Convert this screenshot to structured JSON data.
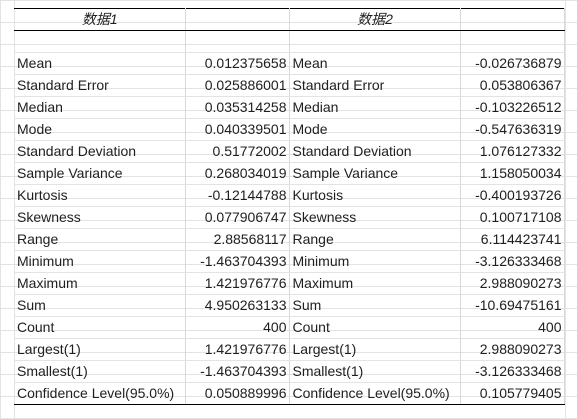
{
  "headers": [
    "数据1",
    "数据2"
  ],
  "rows": [
    {
      "label1": "Mean",
      "value1": "0.012375658",
      "label2": "Mean",
      "value2": "-0.026736879"
    },
    {
      "label1": "Standard Error",
      "value1": "0.025886001",
      "label2": "Standard Error",
      "value2": "0.053806367"
    },
    {
      "label1": "Median",
      "value1": "0.035314258",
      "label2": "Median",
      "value2": "-0.103226512"
    },
    {
      "label1": "Mode",
      "value1": "0.040339501",
      "label2": "Mode",
      "value2": "-0.547636319"
    },
    {
      "label1": "Standard Deviation",
      "value1": "0.51772002",
      "label2": "Standard Deviation",
      "value2": "1.076127332"
    },
    {
      "label1": "Sample Variance",
      "value1": "0.268034019",
      "label2": "Sample Variance",
      "value2": "1.158050034"
    },
    {
      "label1": "Kurtosis",
      "value1": "-0.12144788",
      "label2": "Kurtosis",
      "value2": "-0.400193726"
    },
    {
      "label1": "Skewness",
      "value1": "0.077906747",
      "label2": "Skewness",
      "value2": "0.100717108"
    },
    {
      "label1": "Range",
      "value1": "2.88568117",
      "label2": "Range",
      "value2": "6.114423741"
    },
    {
      "label1": "Minimum",
      "value1": "-1.463704393",
      "label2": "Minimum",
      "value2": "-3.126333468"
    },
    {
      "label1": "Maximum",
      "value1": "1.421976776",
      "label2": "Maximum",
      "value2": "2.988090273"
    },
    {
      "label1": "Sum",
      "value1": "4.950263133",
      "label2": "Sum",
      "value2": "-10.69475161"
    },
    {
      "label1": "Count",
      "value1": "400",
      "label2": "Count",
      "value2": "400"
    },
    {
      "label1": "Largest(1)",
      "value1": "1.421976776",
      "label2": "Largest(1)",
      "value2": "2.988090273"
    },
    {
      "label1": "Smallest(1)",
      "value1": "-1.463704393",
      "label2": "Smallest(1)",
      "value2": "-3.126333468"
    },
    {
      "label1": "Confidence Level(95.0%)",
      "value1": "0.050889996",
      "label2": "Confidence Level(95.0%)",
      "value2": "0.105779405"
    }
  ]
}
